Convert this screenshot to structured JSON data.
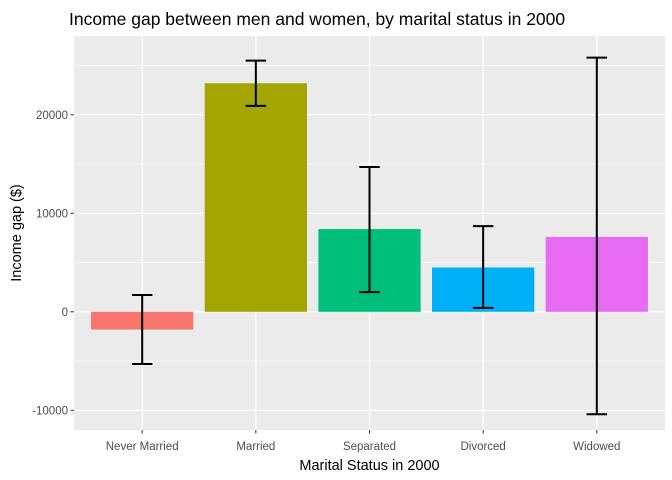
{
  "chart_data": {
    "type": "bar",
    "title": "Income gap between men and women, by marital status in 2000",
    "xlabel": "Marital Status in 2000",
    "ylabel": "Income gap ($)",
    "categories": [
      "Never Married",
      "Married",
      "Separated",
      "Divorced",
      "Widowed"
    ],
    "values": [
      -1800,
      23200,
      8400,
      4500,
      7600
    ],
    "error_low": [
      -5300,
      20900,
      2000,
      400,
      -10400
    ],
    "error_high": [
      1700,
      25500,
      14700,
      8700,
      25800
    ],
    "colors": [
      "#F8766D",
      "#A3A500",
      "#00BF7D",
      "#00B0F6",
      "#E76BF3"
    ],
    "ylim": [
      -12000,
      28000
    ],
    "yticks": [
      -10000,
      0,
      10000,
      20000
    ],
    "ytick_labels": [
      "-10000",
      "0",
      "10000",
      "20000"
    ],
    "grid": true,
    "legend": "none",
    "panel_background": "#EBEBEB",
    "grid_color": "#FFFFFF",
    "error_bar_color": "#000000"
  }
}
